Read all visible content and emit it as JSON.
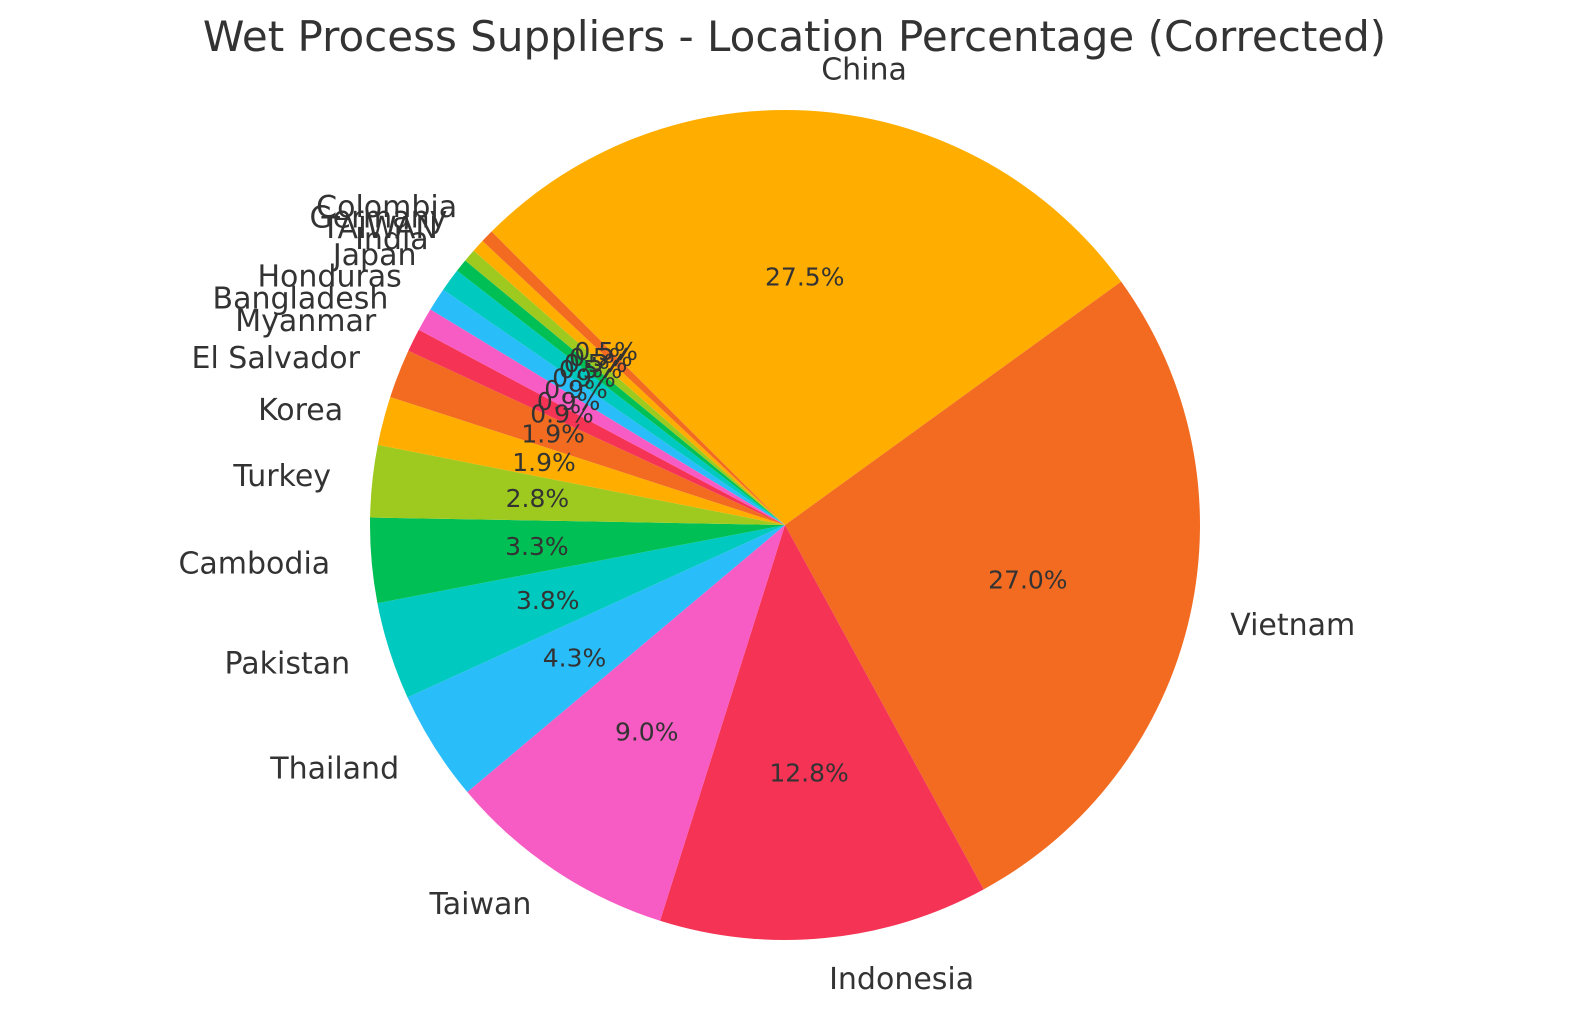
{
  "chart_data": {
    "type": "pie",
    "title": "Wet Process Suppliers - Location Percentage (Corrected)",
    "start_angle_deg": 135,
    "direction": "clockwise",
    "slices": [
      {
        "label": "China",
        "value": 27.5,
        "pct_label": "27.5%",
        "color": "#FFAE00"
      },
      {
        "label": "Vietnam",
        "value": 27.0,
        "pct_label": "27.0%",
        "color": "#F26B21"
      },
      {
        "label": "Indonesia",
        "value": 12.8,
        "pct_label": "12.8%",
        "color": "#F53355"
      },
      {
        "label": "Taiwan",
        "value": 9.0,
        "pct_label": "9.0%",
        "color": "#F75CC4"
      },
      {
        "label": "Thailand",
        "value": 4.3,
        "pct_label": "4.3%",
        "color": "#29BDFA"
      },
      {
        "label": "Pakistan",
        "value": 3.8,
        "pct_label": "3.8%",
        "color": "#00C9BF"
      },
      {
        "label": "Cambodia",
        "value": 3.3,
        "pct_label": "3.3%",
        "color": "#00BF54"
      },
      {
        "label": "Turkey",
        "value": 2.8,
        "pct_label": "2.8%",
        "color": "#9ECA1F"
      },
      {
        "label": "Korea",
        "value": 1.9,
        "pct_label": "1.9%",
        "color": "#FFAE00"
      },
      {
        "label": "El Salvador",
        "value": 1.9,
        "pct_label": "1.9%",
        "color": "#F26B21"
      },
      {
        "label": "Myanmar",
        "value": 0.9,
        "pct_label": "0.9%",
        "color": "#F53355"
      },
      {
        "label": "Bangladesh",
        "value": 0.9,
        "pct_label": "0.9%",
        "color": "#F75CC4"
      },
      {
        "label": "Honduras",
        "value": 0.9,
        "pct_label": "0.9%",
        "color": "#29BDFA"
      },
      {
        "label": "Japan",
        "value": 0.9,
        "pct_label": "0.9%",
        "color": "#00C9BF"
      },
      {
        "label": "India",
        "value": 0.5,
        "pct_label": "0.5%",
        "color": "#00BF54"
      },
      {
        "label": "TAIWAN",
        "value": 0.5,
        "pct_label": "0.5%",
        "color": "#9ECA1F"
      },
      {
        "label": "Germany",
        "value": 0.5,
        "pct_label": "0.5%",
        "color": "#FFAE00"
      },
      {
        "label": "Colombia",
        "value": 0.5,
        "pct_label": "0.5%",
        "color": "#F26B21"
      }
    ]
  }
}
